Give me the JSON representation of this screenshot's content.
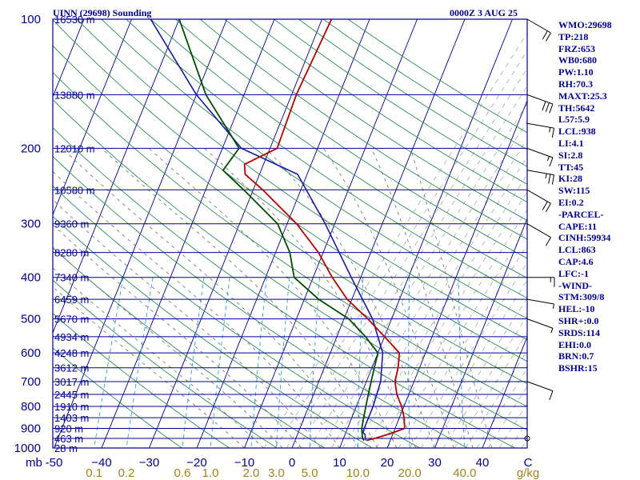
{
  "header": {
    "station": "UINN (29698) Sounding",
    "valid": "0000Z  3 AUG 25"
  },
  "indices": [
    "WMO:29698",
    "TP:218",
    "FRZ:653",
    "WB0:680",
    "PW:1.10",
    "RH:70.3",
    "MAXT:25.3",
    "TH:5642",
    "L57:5.9",
    "LCL:938",
    "LI:4.1",
    "SI:2.8",
    "TT:45",
    "KI:28",
    "SW:115",
    "EI:0.2",
    "-PARCEL-",
    "CAPE:11",
    "CINH:59934",
    "LCL:863",
    "CAP:4.6",
    "LFC:-1",
    "-WIND-",
    "STM:309/8",
    "HEL:-10",
    "SHR+:0.0",
    "SRDS:114",
    "EHI:0.0",
    "BRN:0.7",
    "BSHR:15"
  ],
  "colors": {
    "isobar": "#00008b",
    "dry_adiabat": "#2e8b57",
    "moist_adiabat": "#6e6e6e",
    "mixing_ratio": "#2f9fd4",
    "temperature": "#b00000",
    "dewpoint": "#004d00",
    "wetbulb": "#1a1aa0",
    "labels": "#00008b",
    "mixing_labels": "#a08020"
  },
  "chart_data": {
    "type": "skew-t",
    "pressure_unit": "mb",
    "temperature_unit": "C",
    "mixing_ratio_unit": "g/kg",
    "pressure_ticks": [
      100,
      200,
      300,
      400,
      500,
      600,
      700,
      800,
      900,
      1000
    ],
    "pressure_tick_labels": [
      "100",
      "200",
      "300",
      "400",
      "500",
      "600",
      "700",
      "800",
      "900",
      "1000"
    ],
    "x_axis_label": "mb",
    "temperature_ticks": [
      -50,
      -40,
      -30,
      -20,
      -10,
      0,
      10,
      20,
      30,
      40
    ],
    "temperature_tick_labels": [
      "-50",
      "−40",
      "−30",
      "−20",
      "−10",
      "0",
      "10",
      "20",
      "30",
      "40"
    ],
    "temperature_unit_label": "C",
    "mixing_ratio_ticks": [
      0.1,
      0.2,
      0.6,
      1.0,
      2.0,
      3.0,
      5.0,
      10.0,
      20.0,
      40.0
    ],
    "mixing_ratio_tick_labels": [
      "0.1",
      "0.2",
      "0.6",
      "1.0",
      "2.0",
      "3.0",
      "5.0",
      "10.0",
      "20.0",
      "40.0"
    ],
    "mixing_ratio_unit_label": "g/kg",
    "height_levels": [
      {
        "p": 100,
        "h": "16530 m"
      },
      {
        "p": 150,
        "h": "13880 m"
      },
      {
        "p": 200,
        "h": "12010 m"
      },
      {
        "p": 250,
        "h": "10580 m"
      },
      {
        "p": 300,
        "h": "9360 m"
      },
      {
        "p": 350,
        "h": "8280 m"
      },
      {
        "p": 400,
        "h": "7340 m"
      },
      {
        "p": 450,
        "h": "6459 m"
      },
      {
        "p": 500,
        "h": "5670 m"
      },
      {
        "p": 550,
        "h": "4934 m"
      },
      {
        "p": 600,
        "h": "4248 m"
      },
      {
        "p": 650,
        "h": "3612 m"
      },
      {
        "p": 700,
        "h": "3017 m"
      },
      {
        "p": 750,
        "h": "2445 m"
      },
      {
        "p": 800,
        "h": "1910 m"
      },
      {
        "p": 850,
        "h": "1403 m"
      },
      {
        "p": 900,
        "h": "920 m"
      },
      {
        "p": 950,
        "h": "463 m"
      },
      {
        "p": 1000,
        "h": "28 m"
      }
    ],
    "temperature_profile": [
      [
        960,
        15.0
      ],
      [
        950,
        16.5
      ],
      [
        925,
        19.5
      ],
      [
        900,
        22.0
      ],
      [
        850,
        21.0
      ],
      [
        800,
        19.5
      ],
      [
        750,
        17.5
      ],
      [
        700,
        16.0
      ],
      [
        650,
        15.5
      ],
      [
        600,
        14.5
      ],
      [
        550,
        10.0
      ],
      [
        500,
        5.0
      ],
      [
        450,
        -1.0
      ],
      [
        400,
        -6.0
      ],
      [
        350,
        -11.0
      ],
      [
        300,
        -18.0
      ],
      [
        250,
        -28.0
      ],
      [
        230,
        -33.0
      ],
      [
        218,
        -34.0
      ],
      [
        200,
        -28.5
      ],
      [
        150,
        -29.0
      ],
      [
        100,
        -28.0
      ]
    ],
    "dewpoint_profile": [
      [
        960,
        14.5
      ],
      [
        950,
        14.0
      ],
      [
        925,
        13.5
      ],
      [
        900,
        13.0
      ],
      [
        850,
        12.5
      ],
      [
        800,
        12.0
      ],
      [
        750,
        11.5
      ],
      [
        700,
        11.0
      ],
      [
        650,
        10.5
      ],
      [
        600,
        10.0
      ],
      [
        550,
        6.0
      ],
      [
        500,
        1.0
      ],
      [
        450,
        -7.0
      ],
      [
        400,
        -14.0
      ],
      [
        350,
        -17.0
      ],
      [
        300,
        -22.0
      ],
      [
        250,
        -32.0
      ],
      [
        225,
        -38.0
      ],
      [
        200,
        -36.5
      ],
      [
        150,
        -48.0
      ],
      [
        100,
        -60.0
      ]
    ],
    "wetbulb_profile": [
      [
        960,
        14.8
      ],
      [
        950,
        14.6
      ],
      [
        930,
        14.2
      ],
      [
        920,
        13.6
      ],
      [
        900,
        13.5
      ],
      [
        850,
        13.5
      ],
      [
        800,
        13.5
      ],
      [
        700,
        13.0
      ],
      [
        600,
        11.0
      ],
      [
        500,
        6.0
      ],
      [
        400,
        -2.0
      ],
      [
        300,
        -12.0
      ],
      [
        230,
        -22.0
      ],
      [
        200,
        -36.0
      ],
      [
        150,
        -50.0
      ],
      [
        100,
        -66.0
      ]
    ],
    "wind_barbs": [
      {
        "p": 100,
        "dir": 300,
        "spd": 20
      },
      {
        "p": 150,
        "dir": 290,
        "spd": 30
      },
      {
        "p": 175,
        "dir": 280,
        "spd": 15
      },
      {
        "p": 200,
        "dir": 290,
        "spd": 15
      },
      {
        "p": 225,
        "dir": 280,
        "spd": 25
      },
      {
        "p": 250,
        "dir": 300,
        "spd": 20
      },
      {
        "p": 300,
        "dir": 300,
        "spd": 10
      },
      {
        "p": 400,
        "dir": 270,
        "spd": 15
      },
      {
        "p": 450,
        "dir": 280,
        "spd": 5
      },
      {
        "p": 500,
        "dir": 290,
        "spd": 5
      },
      {
        "p": 700,
        "dir": 290,
        "spd": 10
      },
      {
        "p": 950,
        "dir": 0,
        "spd": 0
      }
    ]
  }
}
